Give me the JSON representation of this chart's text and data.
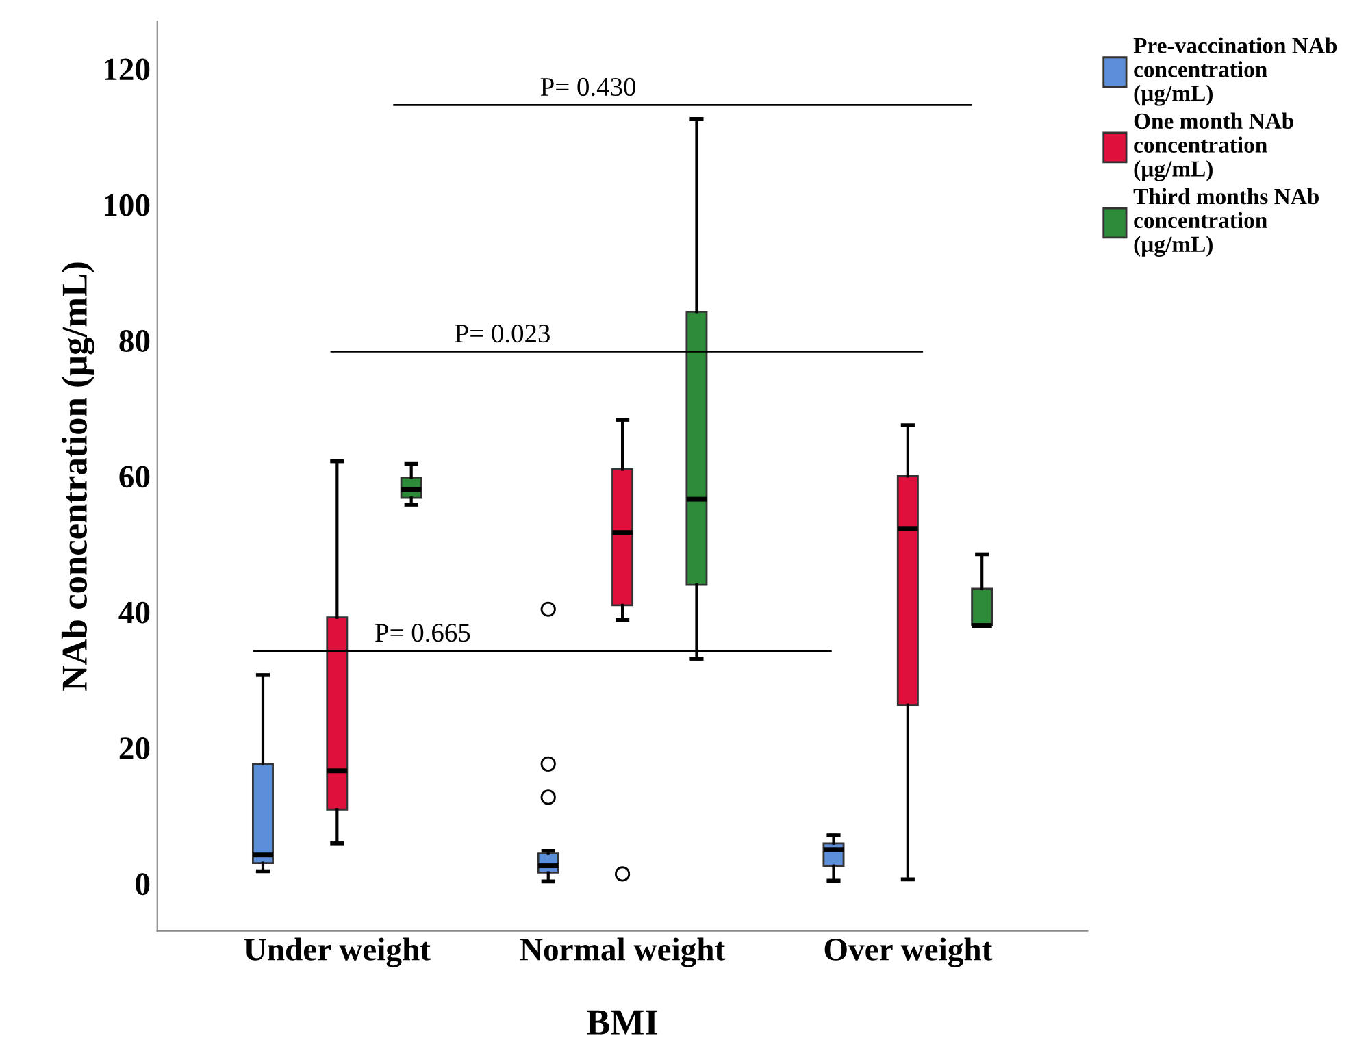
{
  "chart_data": {
    "type": "box",
    "xlabel": "BMI",
    "ylabel": "NAb concentration (µg/mL)",
    "categories": [
      "Under weight",
      "Normal weight",
      "Over weight"
    ],
    "ylim": [
      -7,
      127
    ],
    "yticks": [
      0,
      20,
      40,
      60,
      80,
      100,
      120
    ],
    "grid": false,
    "legend": "top right",
    "series": [
      {
        "name": "Pre-vaccination NAb concentration (µg/mL)",
        "color": "#5b8fd9",
        "boxes": [
          {
            "low": 1.8,
            "q1": 3.0,
            "median": 4.2,
            "q3": 17.6,
            "high": 30.7
          },
          {
            "low": 0.3,
            "q1": 1.6,
            "median": 2.6,
            "q3": 4.4,
            "high": 4.8,
            "outliers": [
              40.4,
              17.6,
              12.7
            ]
          },
          {
            "low": 0.4,
            "q1": 2.6,
            "median": 5.0,
            "q3": 5.9,
            "high": 7.1
          }
        ]
      },
      {
        "name": "One month NAb concentration (µg/mL)",
        "color": "#e0103c",
        "boxes": [
          {
            "low": 5.9,
            "q1": 10.9,
            "median": 16.6,
            "q3": 39.2,
            "high": 62.2
          },
          {
            "low": 38.8,
            "q1": 41.0,
            "median": 51.7,
            "q3": 61.0,
            "high": 68.3,
            "outliers": [
              1.4
            ]
          },
          {
            "low": 0.6,
            "q1": 26.3,
            "median": 52.3,
            "q3": 60.0,
            "high": 67.5
          }
        ]
      },
      {
        "name": "Third months NAb concentration (µg/mL)",
        "color": "#2e8b3a",
        "boxes": [
          {
            "low": 55.8,
            "q1": 56.8,
            "median": 58.0,
            "q3": 59.8,
            "high": 61.8
          },
          {
            "low": 33.1,
            "q1": 44.0,
            "median": 56.6,
            "q3": 84.2,
            "high": 112.6
          },
          {
            "low": 38.0,
            "q1": 38.0,
            "median": 38.0,
            "q3": 43.4,
            "high": 48.5
          }
        ]
      }
    ],
    "annotations": [
      "P= 0.430",
      "P= 0.023",
      "P= 0.665"
    ]
  }
}
